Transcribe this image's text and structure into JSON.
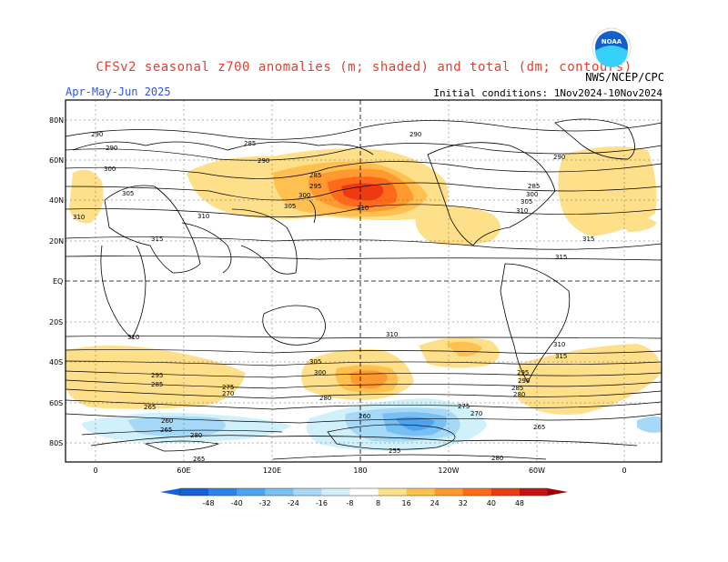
{
  "header": {
    "title": "CFSv2 seasonal z700 anomalies (m; shaded) and total (dm; contours)",
    "season": "Apr-May-Jun 2025",
    "initial_conditions": "Initial conditions: 1Nov2024-10Nov2024",
    "agency": "NWS/NCEP/CPC",
    "logo_text": "NOAA"
  },
  "map": {
    "lat_labels": [
      "80N",
      "60N",
      "40N",
      "20N",
      "EQ",
      "20S",
      "40S",
      "60S",
      "80S"
    ],
    "lon_labels": [
      "0",
      "60E",
      "120E",
      "180",
      "120W",
      "60W",
      "0"
    ],
    "contour_labels": [
      "290",
      "290",
      "300",
      "305",
      "310",
      "315",
      "285",
      "285",
      "290",
      "295",
      "300",
      "305",
      "310",
      "310",
      "315",
      "290",
      "285",
      "290",
      "300",
      "305",
      "310",
      "315",
      "310",
      "310",
      "305",
      "300",
      "295",
      "285",
      "280",
      "270",
      "275",
      "280",
      "285",
      "290",
      "295",
      "275",
      "270",
      "265",
      "260",
      "255",
      "265",
      "260",
      "265",
      "280",
      "265",
      "280",
      "310",
      "315"
    ]
  },
  "colorbar": {
    "ticks": [
      "-48",
      "-40",
      "-32",
      "-24",
      "-16",
      "-8",
      "8",
      "16",
      "24",
      "32",
      "40",
      "48"
    ],
    "colors": [
      "#1560d8",
      "#2c82e8",
      "#4ea3f0",
      "#78bff4",
      "#a6d8f8",
      "#d0f0fa",
      "#ffffff",
      "#ffe08a",
      "#ffc050",
      "#ff9930",
      "#ff6a1a",
      "#ee3a10",
      "#c81010"
    ]
  }
}
